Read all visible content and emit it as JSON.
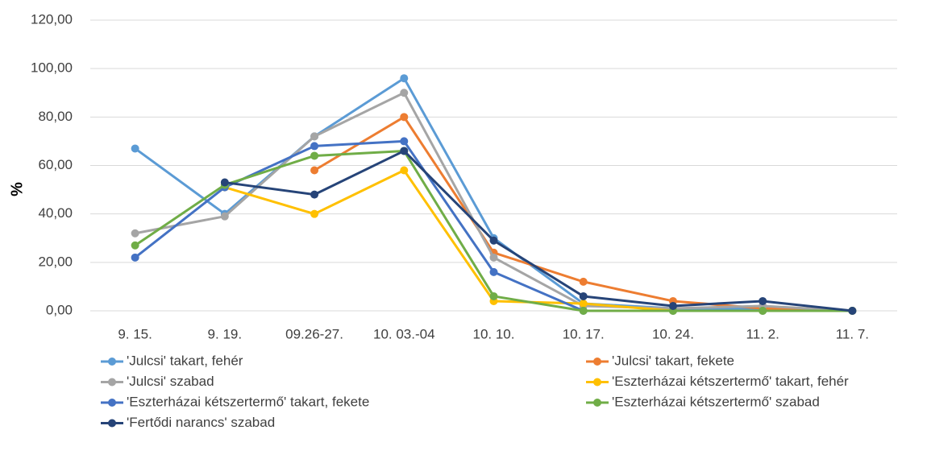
{
  "chart_data": {
    "type": "line",
    "ylabel": "%",
    "categories": [
      "9. 15.",
      "9. 19.",
      "09.26-27.",
      "10. 03.-04",
      "10. 10.",
      "10. 17.",
      "10. 24.",
      "11. 2.",
      "11. 7."
    ],
    "series": [
      {
        "name": "'Julcsi' takart, fehér",
        "color": "#5b9bd5",
        "values": [
          67,
          40,
          72,
          96,
          30,
          3,
          1,
          1,
          0
        ]
      },
      {
        "name": "'Julcsi' takart, fekete",
        "color": "#ed7d31",
        "values": [
          null,
          null,
          58,
          80,
          24,
          12,
          4,
          1,
          0
        ]
      },
      {
        "name": "'Julcsi' szabad",
        "color": "#a5a5a5",
        "values": [
          32,
          39,
          72,
          90,
          22,
          2,
          1,
          2,
          0
        ]
      },
      {
        "name": "'Eszterházai kétszertermő' takart, fehér",
        "color": "#ffc000",
        "values": [
          null,
          51,
          40,
          58,
          4,
          3,
          0,
          0,
          0
        ]
      },
      {
        "name": "'Eszterházai kétszertermő' takart, fekete",
        "color": "#4472c4",
        "values": [
          22,
          51,
          68,
          70,
          16,
          0,
          0,
          0,
          0
        ]
      },
      {
        "name": "'Eszterházai kétszertermő' szabad",
        "color": "#70ad47",
        "values": [
          27,
          52,
          64,
          66,
          6,
          0,
          0,
          0,
          0
        ]
      },
      {
        "name": "'Fertődi narancs' szabad",
        "color": "#264478",
        "values": [
          null,
          53,
          48,
          66,
          29,
          6,
          2,
          4,
          0
        ]
      }
    ],
    "ylim": [
      0,
      120
    ],
    "yticks": [
      {
        "value": 0,
        "label": "0,00"
      },
      {
        "value": 20,
        "label": "20,00"
      },
      {
        "value": 40,
        "label": "40,00"
      },
      {
        "value": 60,
        "label": "60,00"
      },
      {
        "value": 80,
        "label": "80,00"
      },
      {
        "value": 100,
        "label": "100,00"
      },
      {
        "value": 120,
        "label": "120,00"
      }
    ],
    "grid": true
  }
}
